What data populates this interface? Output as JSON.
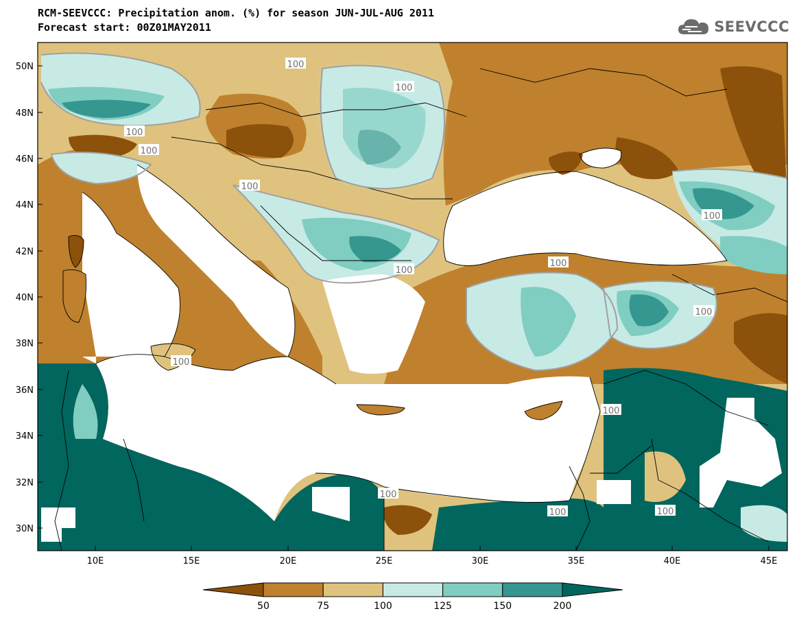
{
  "title": {
    "line1": "RCM-SEEVCCC: Precipitation anom. (%) for season JUN-JUL-AUG 2011",
    "line2": "Forecast start: 00Z01MAY2011"
  },
  "logo": {
    "text": "SEEVCCC",
    "icon": "cloud-icon"
  },
  "map": {
    "region": "Mediterranean / Black Sea",
    "lat_range": [
      29,
      51
    ],
    "lon_range": [
      7,
      46
    ],
    "lat_ticks": [
      "50N",
      "48N",
      "46N",
      "44N",
      "42N",
      "40N",
      "38N",
      "36N",
      "34N",
      "32N",
      "30N"
    ],
    "lon_ticks": [
      "10E",
      "15E",
      "20E",
      "25E",
      "30E",
      "35E",
      "40E",
      "45E"
    ],
    "contour_labels": [
      "100",
      "100",
      "100",
      "100",
      "100",
      "100",
      "100",
      "100",
      "100",
      "100",
      "100",
      "100",
      "100",
      "100"
    ],
    "sea_color": "#ffffff"
  },
  "colorbar": {
    "labels": [
      "50",
      "75",
      "100",
      "125",
      "150",
      "200"
    ],
    "colors": [
      "#8c510a",
      "#bf812d",
      "#dfc27d",
      "#c7eae5",
      "#80cdc1",
      "#35978f",
      "#01665e"
    ]
  }
}
